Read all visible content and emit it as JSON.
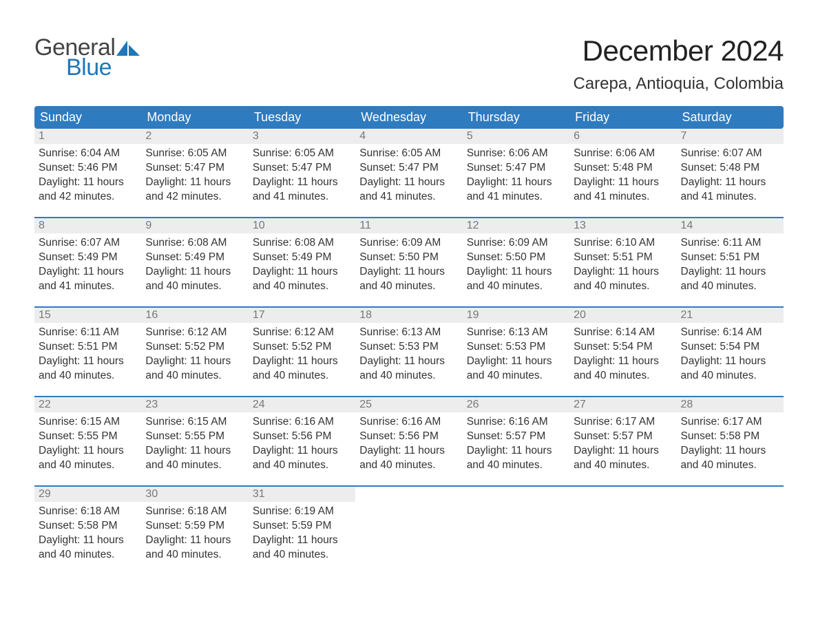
{
  "brand": {
    "word1": "General",
    "word2": "Blue",
    "text_color": "#444444",
    "accent_color": "#1f77b9"
  },
  "title": "December 2024",
  "location": "Carepa, Antioquia, Colombia",
  "colors": {
    "header_bg": "#2f7bbf",
    "header_text": "#ffffff",
    "daynum_bg": "#ededed",
    "daynum_text": "#777777",
    "body_text": "#333333",
    "page_bg": "#ffffff"
  },
  "dayHeaders": [
    "Sunday",
    "Monday",
    "Tuesday",
    "Wednesday",
    "Thursday",
    "Friday",
    "Saturday"
  ],
  "weeks": [
    [
      {
        "n": "1",
        "sunrise": "6:04 AM",
        "sunset": "5:46 PM",
        "daylight": "11 hours and 42 minutes."
      },
      {
        "n": "2",
        "sunrise": "6:05 AM",
        "sunset": "5:47 PM",
        "daylight": "11 hours and 42 minutes."
      },
      {
        "n": "3",
        "sunrise": "6:05 AM",
        "sunset": "5:47 PM",
        "daylight": "11 hours and 41 minutes."
      },
      {
        "n": "4",
        "sunrise": "6:05 AM",
        "sunset": "5:47 PM",
        "daylight": "11 hours and 41 minutes."
      },
      {
        "n": "5",
        "sunrise": "6:06 AM",
        "sunset": "5:47 PM",
        "daylight": "11 hours and 41 minutes."
      },
      {
        "n": "6",
        "sunrise": "6:06 AM",
        "sunset": "5:48 PM",
        "daylight": "11 hours and 41 minutes."
      },
      {
        "n": "7",
        "sunrise": "6:07 AM",
        "sunset": "5:48 PM",
        "daylight": "11 hours and 41 minutes."
      }
    ],
    [
      {
        "n": "8",
        "sunrise": "6:07 AM",
        "sunset": "5:49 PM",
        "daylight": "11 hours and 41 minutes."
      },
      {
        "n": "9",
        "sunrise": "6:08 AM",
        "sunset": "5:49 PM",
        "daylight": "11 hours and 40 minutes."
      },
      {
        "n": "10",
        "sunrise": "6:08 AM",
        "sunset": "5:49 PM",
        "daylight": "11 hours and 40 minutes."
      },
      {
        "n": "11",
        "sunrise": "6:09 AM",
        "sunset": "5:50 PM",
        "daylight": "11 hours and 40 minutes."
      },
      {
        "n": "12",
        "sunrise": "6:09 AM",
        "sunset": "5:50 PM",
        "daylight": "11 hours and 40 minutes."
      },
      {
        "n": "13",
        "sunrise": "6:10 AM",
        "sunset": "5:51 PM",
        "daylight": "11 hours and 40 minutes."
      },
      {
        "n": "14",
        "sunrise": "6:11 AM",
        "sunset": "5:51 PM",
        "daylight": "11 hours and 40 minutes."
      }
    ],
    [
      {
        "n": "15",
        "sunrise": "6:11 AM",
        "sunset": "5:51 PM",
        "daylight": "11 hours and 40 minutes."
      },
      {
        "n": "16",
        "sunrise": "6:12 AM",
        "sunset": "5:52 PM",
        "daylight": "11 hours and 40 minutes."
      },
      {
        "n": "17",
        "sunrise": "6:12 AM",
        "sunset": "5:52 PM",
        "daylight": "11 hours and 40 minutes."
      },
      {
        "n": "18",
        "sunrise": "6:13 AM",
        "sunset": "5:53 PM",
        "daylight": "11 hours and 40 minutes."
      },
      {
        "n": "19",
        "sunrise": "6:13 AM",
        "sunset": "5:53 PM",
        "daylight": "11 hours and 40 minutes."
      },
      {
        "n": "20",
        "sunrise": "6:14 AM",
        "sunset": "5:54 PM",
        "daylight": "11 hours and 40 minutes."
      },
      {
        "n": "21",
        "sunrise": "6:14 AM",
        "sunset": "5:54 PM",
        "daylight": "11 hours and 40 minutes."
      }
    ],
    [
      {
        "n": "22",
        "sunrise": "6:15 AM",
        "sunset": "5:55 PM",
        "daylight": "11 hours and 40 minutes."
      },
      {
        "n": "23",
        "sunrise": "6:15 AM",
        "sunset": "5:55 PM",
        "daylight": "11 hours and 40 minutes."
      },
      {
        "n": "24",
        "sunrise": "6:16 AM",
        "sunset": "5:56 PM",
        "daylight": "11 hours and 40 minutes."
      },
      {
        "n": "25",
        "sunrise": "6:16 AM",
        "sunset": "5:56 PM",
        "daylight": "11 hours and 40 minutes."
      },
      {
        "n": "26",
        "sunrise": "6:16 AM",
        "sunset": "5:57 PM",
        "daylight": "11 hours and 40 minutes."
      },
      {
        "n": "27",
        "sunrise": "6:17 AM",
        "sunset": "5:57 PM",
        "daylight": "11 hours and 40 minutes."
      },
      {
        "n": "28",
        "sunrise": "6:17 AM",
        "sunset": "5:58 PM",
        "daylight": "11 hours and 40 minutes."
      }
    ],
    [
      {
        "n": "29",
        "sunrise": "6:18 AM",
        "sunset": "5:58 PM",
        "daylight": "11 hours and 40 minutes."
      },
      {
        "n": "30",
        "sunrise": "6:18 AM",
        "sunset": "5:59 PM",
        "daylight": "11 hours and 40 minutes."
      },
      {
        "n": "31",
        "sunrise": "6:19 AM",
        "sunset": "5:59 PM",
        "daylight": "11 hours and 40 minutes."
      },
      null,
      null,
      null,
      null
    ]
  ],
  "labels": {
    "sunrise": "Sunrise: ",
    "sunset": "Sunset: ",
    "daylight": "Daylight: "
  }
}
